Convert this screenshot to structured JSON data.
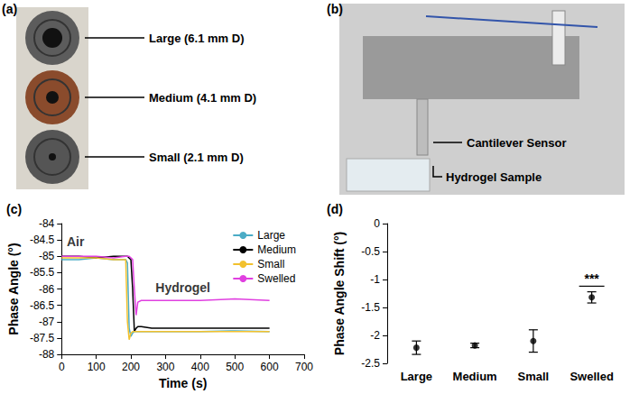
{
  "images": [
    {
      "panel": "(a)",
      "labels": [
        "Large (6.1 mm D)",
        "Medium (4.1 mm D)",
        "Small (2.1 mm D)"
      ]
    },
    {
      "panel": "(b)",
      "labels": [
        "Cantilever Sensor",
        "Hydrogel Sample"
      ]
    }
  ],
  "chart_data": [
    {
      "panel": "(c)",
      "type": "line",
      "x_label": "Time (s)",
      "y_label": "Phase Angle (°)",
      "x": [
        0,
        50,
        100,
        150,
        185,
        190,
        195,
        200,
        205,
        210,
        215,
        220,
        230,
        260,
        300,
        400,
        500,
        600
      ],
      "series": [
        {
          "name": "Large",
          "color": "#4bacc6",
          "values": [
            -85.1,
            -85.1,
            -85.05,
            -85.1,
            -85.1,
            -85.2,
            -87.2,
            -87.45,
            -87.35,
            -87.3,
            -87.3,
            -87.3,
            -87.3,
            -87.3,
            -87.3,
            -87.3,
            -87.28,
            -87.3
          ]
        },
        {
          "name": "Medium",
          "color": "#000000",
          "values": [
            -85.0,
            -85.0,
            -85.05,
            -85.0,
            -85.0,
            -85.0,
            -85.05,
            -85.1,
            -86.0,
            -87.3,
            -87.2,
            -87.15,
            -87.15,
            -87.2,
            -87.2,
            -87.2,
            -87.2,
            -87.2
          ]
        },
        {
          "name": "Small",
          "color": "#f2c12e",
          "values": [
            -85.05,
            -85.05,
            -85.05,
            -85.1,
            -85.1,
            -87.0,
            -87.55,
            -87.35,
            -87.3,
            -87.3,
            -87.3,
            -87.3,
            -87.3,
            -87.3,
            -87.3,
            -87.3,
            -87.3,
            -87.3
          ]
        },
        {
          "name": "Swelled",
          "color": "#e040e0",
          "values": [
            -85.0,
            -85.0,
            -85.0,
            -85.05,
            -85.0,
            -85.0,
            -85.0,
            -85.05,
            -85.1,
            -86.0,
            -86.8,
            -86.4,
            -86.35,
            -86.35,
            -86.35,
            -86.35,
            -86.3,
            -86.35
          ]
        }
      ],
      "xlim": [
        0,
        700
      ],
      "xticks": [
        0,
        100,
        200,
        300,
        400,
        500,
        600,
        700
      ],
      "ylim": [
        -88,
        -84
      ],
      "yticks": [
        -88,
        -87.5,
        -87,
        -86.5,
        -86,
        -85.5,
        -85,
        -84.5,
        -84
      ],
      "grid": false,
      "legend": "top-right",
      "annotations": [
        {
          "text": "Air",
          "x": 40,
          "y": -84.55
        },
        {
          "text": "Hydrogel",
          "x": 350,
          "y": -85.95
        }
      ]
    },
    {
      "panel": "(d)",
      "type": "scatter",
      "y_label": "Phase Angle Shift (°)",
      "categories": [
        "Large",
        "Medium",
        "Small",
        "Swelled"
      ],
      "values": [
        -2.22,
        -2.18,
        -2.1,
        -1.32
      ],
      "errors": [
        0.12,
        0.04,
        0.2,
        0.1
      ],
      "color": "#000000",
      "marker": "circle",
      "ylim": [
        -2.5,
        0
      ],
      "yticks": [
        -2.5,
        -2,
        -1.5,
        -1,
        -0.5,
        0
      ],
      "grid": false,
      "annotations": [
        {
          "text": "***",
          "category": "Swelled",
          "y": -1.12
        }
      ]
    }
  ]
}
